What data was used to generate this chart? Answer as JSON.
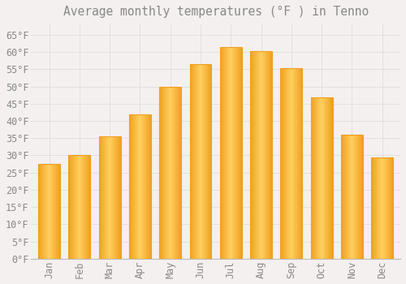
{
  "title": "Average monthly temperatures (°F ) in Tenno",
  "months": [
    "Jan",
    "Feb",
    "Mar",
    "Apr",
    "May",
    "Jun",
    "Jul",
    "Aug",
    "Sep",
    "Oct",
    "Nov",
    "Dec"
  ],
  "values": [
    27.5,
    30.2,
    35.5,
    42.0,
    50.0,
    56.5,
    61.5,
    60.2,
    55.2,
    46.8,
    36.0,
    29.3
  ],
  "bar_color_center": "#FFD060",
  "bar_color_edge": "#F0A020",
  "background_color": "#F5F0F0",
  "grid_color": "#DDDDDD",
  "text_color": "#888888",
  "ylim": [
    0,
    68
  ],
  "yticks": [
    0,
    5,
    10,
    15,
    20,
    25,
    30,
    35,
    40,
    45,
    50,
    55,
    60,
    65
  ],
  "title_fontsize": 10.5,
  "tick_fontsize": 8.5
}
